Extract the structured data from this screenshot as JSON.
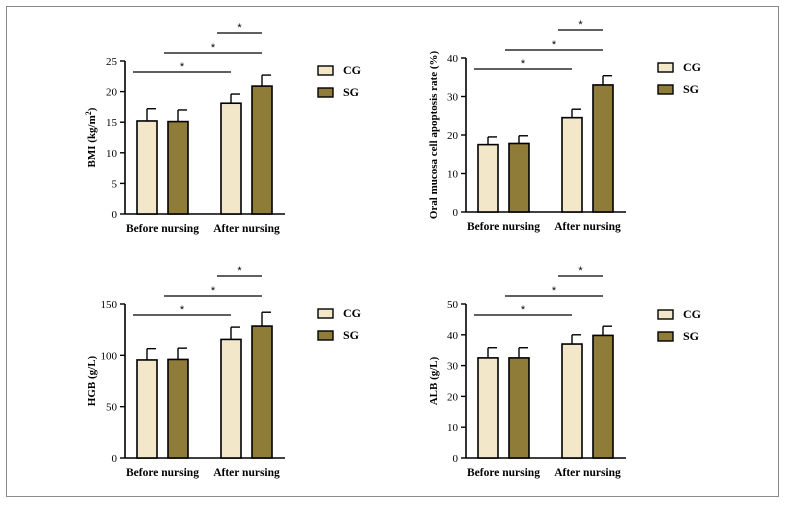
{
  "colors": {
    "cg": "#f2e8c9",
    "sg": "#8f7c39"
  },
  "chart_data": [
    {
      "type": "bar",
      "ylabel": "BMI (kg/m",
      "ylabel_sup": "2",
      "ylabel_suffix": ")",
      "categories": [
        "Before nursing",
        "After nursing"
      ],
      "series": [
        {
          "name": "CG",
          "values": [
            15.2,
            18.1
          ],
          "errors": [
            2.0,
            1.5
          ]
        },
        {
          "name": "SG",
          "values": [
            15.1,
            20.9
          ],
          "errors": [
            1.9,
            1.8
          ]
        }
      ],
      "ylim": [
        0,
        25
      ],
      "yticks": [
        0,
        5,
        10,
        15,
        20,
        25
      ],
      "ytick_labels": [
        "0",
        "5",
        "10",
        "15",
        "20",
        "25"
      ],
      "significance": [
        {
          "label": "*",
          "from": "Before nursing CG",
          "to": "After nursing CG"
        },
        {
          "label": "*",
          "from": "Before nursing SG",
          "to": "After nursing SG"
        },
        {
          "label": "*",
          "from": "After nursing CG",
          "to": "After nursing SG"
        }
      ]
    },
    {
      "type": "bar",
      "ylabel": "Oral mucosa cell apoptosis rate (%)",
      "ylabel_sup": "",
      "ylabel_suffix": "",
      "categories": [
        "Before nursing",
        "After nursing"
      ],
      "series": [
        {
          "name": "CG",
          "values": [
            17.5,
            24.5
          ],
          "errors": [
            2.0,
            2.2
          ]
        },
        {
          "name": "SG",
          "values": [
            17.8,
            33.0
          ],
          "errors": [
            2.0,
            2.4
          ]
        }
      ],
      "ylim": [
        0,
        40
      ],
      "yticks": [
        0,
        10,
        20,
        30,
        40
      ],
      "ytick_labels": [
        "0",
        "10",
        "20",
        "30",
        "40"
      ],
      "significance": [
        {
          "label": "*",
          "from": "Before nursing CG",
          "to": "After nursing CG"
        },
        {
          "label": "*",
          "from": "Before nursing SG",
          "to": "After nursing SG"
        },
        {
          "label": "*",
          "from": "After nursing CG",
          "to": "After nursing SG"
        }
      ]
    },
    {
      "type": "bar",
      "ylabel": "HGB (g/L)",
      "ylabel_sup": "",
      "ylabel_suffix": "",
      "categories": [
        "Before nursing",
        "After nursing"
      ],
      "series": [
        {
          "name": "CG",
          "values": [
            95.5,
            115.5
          ],
          "errors": [
            11.0,
            12.0
          ]
        },
        {
          "name": "SG",
          "values": [
            96.0,
            128.5
          ],
          "errors": [
            11.0,
            13.5
          ]
        }
      ],
      "ylim": [
        0,
        150
      ],
      "yticks": [
        0,
        50,
        100,
        150
      ],
      "ytick_labels": [
        "0",
        "50",
        "100",
        "150"
      ],
      "significance": [
        {
          "label": "*",
          "from": "Before nursing CG",
          "to": "After nursing CG"
        },
        {
          "label": "*",
          "from": "Before nursing SG",
          "to": "After nursing SG"
        },
        {
          "label": "*",
          "from": "After nursing CG",
          "to": "After nursing SG"
        }
      ]
    },
    {
      "type": "bar",
      "ylabel": "ALB (g/L)",
      "ylabel_sup": "",
      "ylabel_suffix": "",
      "categories": [
        "Before nursing",
        "After nursing"
      ],
      "series": [
        {
          "name": "CG",
          "values": [
            32.5,
            37.0
          ],
          "errors": [
            3.3,
            3.0
          ]
        },
        {
          "name": "SG",
          "values": [
            32.5,
            39.8
          ],
          "errors": [
            3.3,
            3.0
          ]
        }
      ],
      "ylim": [
        0,
        50
      ],
      "yticks": [
        0,
        10,
        20,
        30,
        40,
        50
      ],
      "ytick_labels": [
        "0",
        "10",
        "20",
        "30",
        "40",
        "50"
      ],
      "significance": [
        {
          "label": "*",
          "from": "Before nursing CG",
          "to": "After nursing CG"
        },
        {
          "label": "*",
          "from": "Before nursing SG",
          "to": "After nursing SG"
        },
        {
          "label": "*",
          "from": "After nursing CG",
          "to": "After nursing SG"
        }
      ]
    }
  ]
}
